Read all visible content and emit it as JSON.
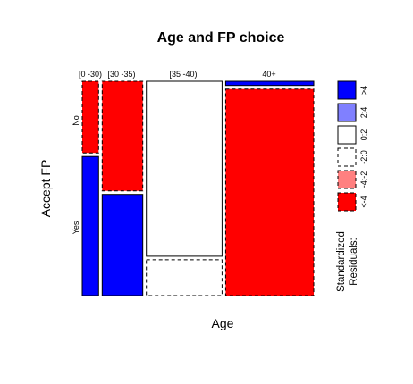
{
  "chart_data": {
    "type": "mosaic",
    "title": "Age and FP choice",
    "xlabel": "Age",
    "ylabel": "Accept FP",
    "categories": [
      "[0 -30)",
      "[30 -35)",
      "[35 -40)",
      "40+"
    ],
    "row_levels": [
      "No",
      "Yes"
    ],
    "column_proportions": [
      0.074,
      0.184,
      0.343,
      0.399
    ],
    "conditional_proportion_no": [
      0.34,
      0.52,
      0.83,
      0.02
    ],
    "residual_class": {
      "No": [
        "<-4",
        "<-4",
        "0:2",
        ">4"
      ],
      "Yes": [
        ">4",
        ">4",
        "-2:0",
        "<-4"
      ]
    },
    "legend": {
      "title_line1": "Standardized",
      "title_line2": "Residuals:",
      "entries": [
        {
          "label": ">4",
          "color": "#0000FF",
          "dashed": false
        },
        {
          "label": "2:4",
          "color": "#8080FF",
          "dashed": false
        },
        {
          "label": "0:2",
          "color": "#FFFFFF",
          "dashed": false
        },
        {
          "label": "-2:0",
          "color": "#FFFFFF",
          "dashed": true
        },
        {
          "label": "-4:-2",
          "color": "#FF8080",
          "dashed": true
        },
        {
          "label": "<-4",
          "color": "#FF0000",
          "dashed": true
        }
      ]
    }
  }
}
